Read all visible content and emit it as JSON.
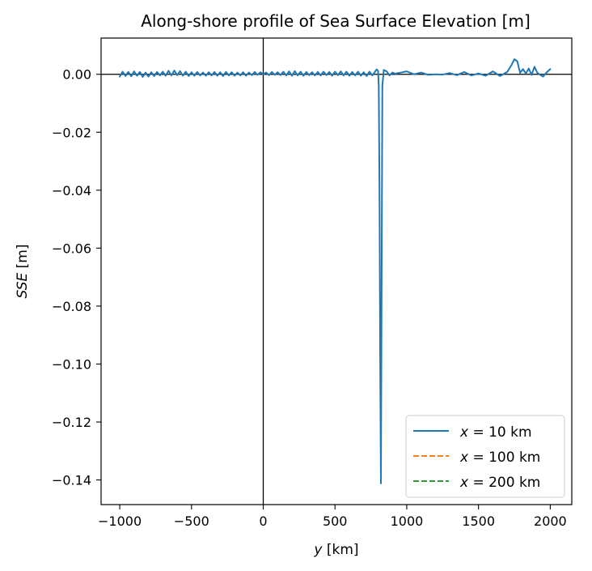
{
  "chart_data": {
    "type": "line",
    "title": "Along-shore profile of Sea Surface Elevation [m]",
    "xlabel_italic": "y",
    "xlabel_unit": " [km]",
    "ylabel_italic": "SSE",
    "ylabel_unit": " [m]",
    "xlim": [
      -1130,
      2150
    ],
    "ylim": [
      -0.1485,
      0.0125
    ],
    "xticks": [
      {
        "value": -1000,
        "label": "−1000"
      },
      {
        "value": -500,
        "label": "−500"
      },
      {
        "value": 0,
        "label": "0"
      },
      {
        "value": 500,
        "label": "500"
      },
      {
        "value": 1000,
        "label": "1000"
      },
      {
        "value": 1500,
        "label": "1500"
      },
      {
        "value": 2000,
        "label": "2000"
      }
    ],
    "yticks": [
      {
        "value": 0.0,
        "label": "0.00"
      },
      {
        "value": -0.02,
        "label": "−0.02"
      },
      {
        "value": -0.04,
        "label": "−0.04"
      },
      {
        "value": -0.06,
        "label": "−0.06"
      },
      {
        "value": -0.08,
        "label": "−0.08"
      },
      {
        "value": -0.1,
        "label": "−0.10"
      },
      {
        "value": -0.12,
        "label": "−0.12"
      },
      {
        "value": -0.14,
        "label": "−0.14"
      }
    ],
    "reference_lines": {
      "x": 0,
      "y": 0
    },
    "grid": false,
    "legend_position": "lower-right",
    "series": [
      {
        "name_italic": "x",
        "name_rest": " = 10 km",
        "color": "#1f77b4",
        "dash": "solid",
        "x": [
          -1000,
          -980,
          -960,
          -940,
          -920,
          -900,
          -880,
          -860,
          -840,
          -820,
          -800,
          -780,
          -760,
          -740,
          -720,
          -700,
          -680,
          -660,
          -640,
          -620,
          -600,
          -580,
          -560,
          -540,
          -520,
          -500,
          -480,
          -460,
          -440,
          -420,
          -400,
          -380,
          -360,
          -340,
          -320,
          -300,
          -280,
          -260,
          -240,
          -220,
          -200,
          -180,
          -160,
          -140,
          -120,
          -100,
          -80,
          -60,
          -40,
          -20,
          0,
          20,
          40,
          60,
          80,
          100,
          120,
          140,
          160,
          180,
          200,
          220,
          240,
          260,
          280,
          300,
          320,
          340,
          360,
          380,
          400,
          420,
          440,
          460,
          480,
          500,
          520,
          540,
          560,
          580,
          600,
          620,
          640,
          660,
          680,
          700,
          720,
          740,
          760,
          775,
          790,
          800,
          805,
          810,
          815,
          820,
          825,
          830,
          840,
          860,
          880,
          900,
          920,
          940,
          960,
          980,
          1000,
          1050,
          1100,
          1150,
          1200,
          1250,
          1300,
          1350,
          1400,
          1450,
          1500,
          1550,
          1600,
          1650,
          1700,
          1730,
          1750,
          1770,
          1790,
          1810,
          1830,
          1850,
          1870,
          1890,
          1910,
          1930,
          1950,
          1970,
          2000
        ],
        "y": [
          -0.0008,
          0.0009,
          -0.0006,
          0.0008,
          -0.0007,
          0.001,
          -0.0005,
          0.0008,
          -0.0009,
          0.0006,
          -0.0008,
          0.0007,
          -0.0006,
          0.0008,
          -0.0004,
          0.0009,
          -0.0005,
          0.0012,
          -0.0004,
          0.0013,
          -0.0003,
          0.0011,
          -0.0005,
          0.0009,
          -0.0006,
          0.0007,
          -0.0005,
          0.0008,
          -0.0004,
          0.0006,
          -0.0005,
          0.0007,
          -0.0004,
          0.0008,
          -0.0005,
          0.0007,
          -0.0006,
          0.0008,
          -0.0004,
          0.0007,
          -0.0005,
          0.0006,
          -0.0004,
          0.0007,
          -0.0005,
          0.0006,
          -0.0003,
          0.0008,
          -0.0002,
          0.0007,
          0.0,
          0.0006,
          -0.0003,
          0.0008,
          -0.0002,
          0.0007,
          -0.0003,
          0.0009,
          -0.0004,
          0.001,
          -0.0005,
          0.0011,
          -0.0004,
          0.0009,
          -0.0005,
          0.0008,
          -0.0003,
          0.0007,
          -0.0004,
          0.0008,
          -0.0004,
          0.0009,
          -0.0003,
          0.0008,
          -0.0005,
          0.0009,
          -0.0003,
          0.001,
          -0.0004,
          0.0009,
          -0.0005,
          0.0008,
          -0.0004,
          0.0009,
          -0.0005,
          0.0007,
          -0.0006,
          0.0009,
          -0.0004,
          0.0006,
          0.0017,
          0.0012,
          -0.004,
          -0.04,
          -0.1,
          -0.1412,
          -0.07,
          -0.004,
          0.0015,
          0.001,
          -0.0004,
          0.0006,
          0.0002,
          0.0004,
          0.0006,
          0.0008,
          0.001,
          0.0,
          0.0006,
          -0.0002,
          0.0,
          -0.0001,
          0.0004,
          -0.0003,
          0.0008,
          -0.0004,
          0.0003,
          -0.0005,
          0.001,
          -0.0006,
          0.0008,
          0.0032,
          0.0052,
          0.0045,
          0.0005,
          0.0018,
          0.0003,
          0.002,
          -0.0002,
          0.0026,
          0.0005,
          -0.0002,
          -0.0008,
          0.0004,
          0.0018
        ]
      },
      {
        "name_italic": "x",
        "name_rest": " = 100 km",
        "color": "#ff7f0e",
        "dash": "dashed"
      },
      {
        "name_italic": "x",
        "name_rest": " = 200 km",
        "color": "#2ca02c",
        "dash": "dashed"
      }
    ]
  }
}
